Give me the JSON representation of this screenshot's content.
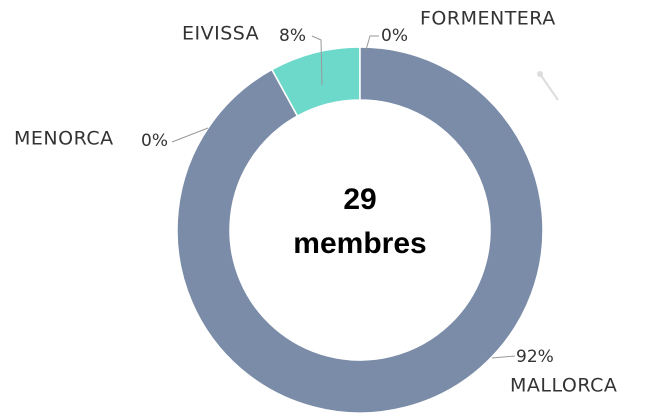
{
  "chart_data": {
    "type": "donut",
    "categories": [
      "MALLORCA",
      "MENORCA",
      "EIVISSA",
      "FORMENTERA"
    ],
    "values": [
      92,
      0,
      8,
      0
    ],
    "value_labels": [
      "92%",
      "0%",
      "8%",
      "0%"
    ],
    "colors": [
      "#7b8ca8",
      "#7b8ca8",
      "#6dd9cb",
      "#6dd9cb"
    ],
    "center_text": [
      "29",
      "membres"
    ]
  }
}
